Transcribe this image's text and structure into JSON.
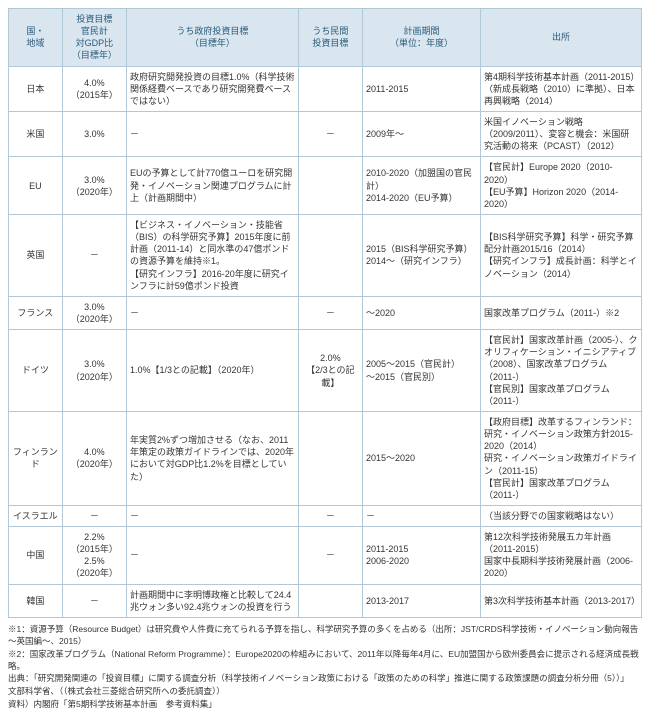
{
  "headers": {
    "country": "国・\n地域",
    "totalTarget": "投資目標\n官民計\n対GDP比\n（目標年）",
    "govTarget": "うち政府投資目標\n（目標年）",
    "privTarget": "うち民間\n投資目標",
    "period": "計画期間\n（単位：年度）",
    "source": "出所"
  },
  "rows": [
    {
      "country": "日本",
      "total": "4.0%\n（2015年）",
      "gov": "政府研究開発投資の目標1.0%（科学技術関係経費ベースであり研究開発費ベースではない）",
      "priv": "",
      "period": "2011-2015",
      "source": "第4期科学技術基本計画（2011-2015）（新成長戦略（2010）に準拠）、日本再興戦略（2014）"
    },
    {
      "country": "米国",
      "total": "3.0%",
      "gov": "－",
      "priv": "－",
      "period": "2009年～",
      "source": "米国イノベーション戦略（2009/2011）、変容と機会：米国研究活動の将来（PCAST）（2012）"
    },
    {
      "country": "EU",
      "total": "3.0%\n（2020年）",
      "gov": "EUの予算として計770億ユーロを研究開発・イノベーション関連プログラムに計上（計画期間中）",
      "priv": "",
      "period": "2010-2020（加盟国の官民計）\n2014-2020（EU予算）",
      "source": "【官民計】Europe 2020（2010-2020）\n【EU予算】Horizon 2020（2014-2020）"
    },
    {
      "country": "英国",
      "total": "－",
      "gov": "【ビジネス・イノベーション・技能省（BIS）の科学研究予算】2015年度に前計画（2011-14）と同水準の47億ポンドの資源予算を維持※1。\n【研究インフラ】2016-20年度に研究インフラに計59億ポンド投資",
      "priv": "",
      "period": "2015（BIS科学研究予算）\n2014～（研究インフラ）",
      "source": "【BIS科学研究予算】科学・研究予算配分計画2015/16（2014）\n【研究インフラ】成長計画：科学とイノベーション（2014）"
    },
    {
      "country": "フランス",
      "total": "3.0%\n（2020年）",
      "gov": "－",
      "priv": "－",
      "period": "～2020",
      "source": "国家改革プログラム（2011-）※2"
    },
    {
      "country": "ドイツ",
      "total": "3.0%\n（2020年）",
      "gov": "1.0%【1/3との記載】（2020年）",
      "priv": "2.0%\n【2/3との記載】",
      "period": "2005～2015（官民計）\n～2015（官民別）",
      "source": "【官民計】国家改革計画（2005-）、クオリフィケーション・イニシアティブ（2008）、国家改革プログラム（2011-）\n【官民別】国家改革プログラム（2011-）"
    },
    {
      "country": "フィンランド",
      "total": "4.0%\n（2020年）",
      "gov": "年実質2%ずつ増加させる（なお、2011年策定の政策ガイドラインでは、2020年において対GDP比1.2%を目標としていた）",
      "priv": "",
      "period": "2015～2020",
      "source": "【政府目標】改革するフィンランド：研究・イノベーション政策方針2015-2020（2014）\n研究・イノベーション政策ガイドライン（2011-15）\n【官民計】国家改革プログラム（2011-）"
    },
    {
      "country": "イスラエル",
      "total": "－",
      "gov": "－",
      "priv": "－",
      "period": "－",
      "source": "（当該分野での国家戦略はない）"
    },
    {
      "country": "中国",
      "total": "2.2%\n（2015年）\n2.5%\n（2020年）",
      "gov": "－",
      "priv": "－",
      "period": "2011-2015\n2006-2020",
      "source": "第12次科学技術発展五カ年計画（2011-2015）\n国家中長期科学技術発展計画（2006-2020）"
    },
    {
      "country": "韓国",
      "total": "－",
      "gov": "計画期間中に李明博政権と比較して24.4兆ウォン多い92.4兆ウォンの投資を行う",
      "priv": "",
      "period": "2013-2017",
      "source": "第3次科学技術基本計画（2013-2017）"
    }
  ],
  "notes": {
    "n1": "※1：資源予算（Resource Budget）は研究費や人件費に充てられる予算を指し、科学研究予算の多くを占める（出所：JST/CRDS科学技術・イノベーション動向報告～英国編～、2015）",
    "n2": "※2：国家改革プログラム（National Reform Programme）：Europe2020の枠組みにおいて、2011年以降毎年4月に、EU加盟国から欧州委員会に提示される経済成長戦略。",
    "n3": "出典：「研究開発関連の「投資目標」に関する調査分析（科学技術イノベーション政策における「政策のための科学」推進に関する政策課題の調査分析分冊（5））」",
    "n4": "文部科学省、（（株式会社三菱総合研究所への委託調査））",
    "n5": "資料）内閣府「第5期科学技術基本計画　参考資料集」"
  }
}
